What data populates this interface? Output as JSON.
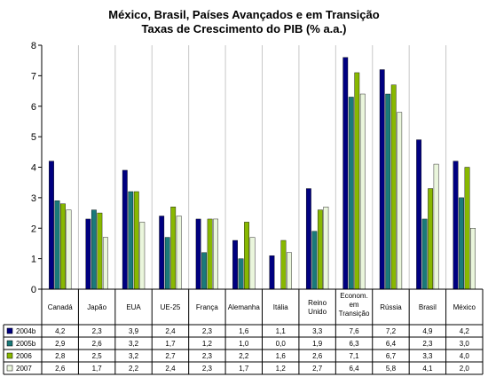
{
  "chart_data": {
    "type": "bar",
    "title": "México, Brasil, Países Avançados e em Transição",
    "subtitle": "Taxas de Crescimento do PIB (% a.a.)",
    "ylim": [
      0,
      8
    ],
    "yticks": [
      "0",
      "1",
      "2",
      "3",
      "4",
      "5",
      "6",
      "7",
      "8"
    ],
    "grid": false,
    "legend": "data-table",
    "categories": [
      [
        "Canadá"
      ],
      [
        "Japão"
      ],
      [
        "EUA"
      ],
      [
        "UE-25"
      ],
      [
        "França"
      ],
      [
        "Alemanha"
      ],
      [
        "Itália"
      ],
      [
        "Reino",
        "Unido"
      ],
      [
        "Econom.",
        "em",
        "Transição"
      ],
      [
        "Rússia"
      ],
      [
        "Brasil"
      ],
      [
        "México"
      ]
    ],
    "series": [
      {
        "name": "2004b",
        "color": "#000080",
        "values": [
          4.2,
          2.3,
          3.9,
          2.4,
          2.3,
          1.6,
          1.1,
          3.3,
          7.6,
          7.2,
          4.9,
          4.2
        ],
        "labels": [
          "4,2",
          "2,3",
          "3,9",
          "2,4",
          "2,3",
          "1,6",
          "1,1",
          "3,3",
          "7,6",
          "7,2",
          "4,9",
          "4,2"
        ]
      },
      {
        "name": "2005b",
        "color": "#1a7a7a",
        "values": [
          2.9,
          2.6,
          3.2,
          1.7,
          1.2,
          1.0,
          0.0,
          1.9,
          6.3,
          6.4,
          2.3,
          3.0
        ],
        "labels": [
          "2,9",
          "2,6",
          "3,2",
          "1,7",
          "1,2",
          "1,0",
          "0,0",
          "1,9",
          "6,3",
          "6,4",
          "2,3",
          "3,0"
        ]
      },
      {
        "name": "2006",
        "color": "#88b800",
        "values": [
          2.8,
          2.5,
          3.2,
          2.7,
          2.3,
          2.2,
          1.6,
          2.6,
          7.1,
          6.7,
          3.3,
          4.0
        ],
        "labels": [
          "2,8",
          "2,5",
          "3,2",
          "2,7",
          "2,3",
          "2,2",
          "1,6",
          "2,6",
          "7,1",
          "6,7",
          "3,3",
          "4,0"
        ]
      },
      {
        "name": "2007",
        "color": "#eaf6dc",
        "values": [
          2.6,
          1.7,
          2.2,
          2.4,
          2.3,
          1.7,
          1.2,
          2.7,
          6.4,
          5.8,
          4.1,
          2.0
        ],
        "labels": [
          "2,6",
          "1,7",
          "2,2",
          "2,4",
          "2,3",
          "1,7",
          "1,2",
          "2,7",
          "6,4",
          "5,8",
          "4,1",
          "2,0"
        ]
      }
    ]
  }
}
